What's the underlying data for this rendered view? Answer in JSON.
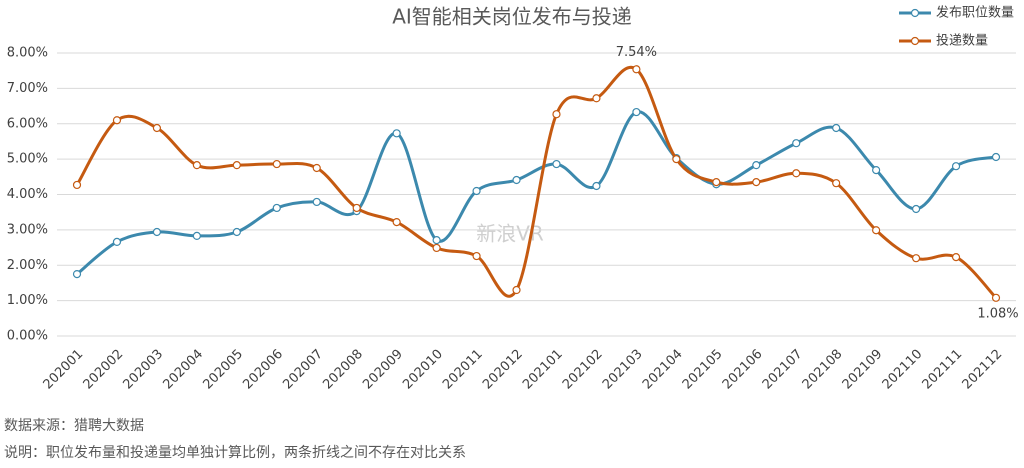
{
  "chart_data": {
    "type": "line",
    "title": "AI智能相关岗位发布与投递",
    "categories": [
      "202001",
      "202002",
      "202003",
      "202004",
      "202005",
      "202006",
      "202007",
      "202008",
      "202009",
      "202010",
      "202011",
      "202012",
      "202101",
      "202102",
      "202103",
      "202104",
      "202105",
      "202106",
      "202107",
      "202108",
      "202109",
      "202110",
      "202111",
      "202112"
    ],
    "series": [
      {
        "name": "发布职位数量",
        "color": "#3c89ad",
        "values": [
          1.75,
          2.66,
          2.94,
          2.83,
          2.94,
          3.62,
          3.79,
          3.53,
          5.73,
          2.71,
          4.1,
          4.41,
          4.86,
          4.24,
          6.33,
          5.03,
          4.29,
          4.83,
          5.45,
          5.88,
          4.69,
          3.59,
          4.8,
          5.06
        ]
      },
      {
        "name": "投递数量",
        "color": "#c55a11",
        "values": [
          4.27,
          6.1,
          5.88,
          4.83,
          4.83,
          4.86,
          4.75,
          3.62,
          3.22,
          2.49,
          2.26,
          1.3,
          6.27,
          6.72,
          7.54,
          5.0,
          4.35,
          4.35,
          4.6,
          4.32,
          2.99,
          2.2,
          2.23,
          1.08
        ],
        "value_labels": [
          null,
          null,
          null,
          null,
          null,
          null,
          null,
          null,
          null,
          null,
          null,
          null,
          null,
          null,
          "7.54%",
          null,
          null,
          null,
          null,
          null,
          null,
          null,
          null,
          "1.08%"
        ]
      }
    ],
    "ylim": [
      0,
      8
    ],
    "yticks": [
      {
        "value": 0,
        "label": "0.00%"
      },
      {
        "value": 1,
        "label": "1.00%"
      },
      {
        "value": 2,
        "label": "2.00%"
      },
      {
        "value": 3,
        "label": "3.00%"
      },
      {
        "value": 4,
        "label": "4.00%"
      },
      {
        "value": 5,
        "label": "5.00%"
      },
      {
        "value": 6,
        "label": "6.00%"
      },
      {
        "value": 7,
        "label": "7.00%"
      },
      {
        "value": 8,
        "label": "8.00%"
      }
    ],
    "grid": true,
    "legend": "top-right",
    "watermark": "新浪VR",
    "source": "数据来源：猎聘大数据",
    "note": "说明：职位发布量和投递量均单独计算比例，两条折线之间不存在对比关系"
  }
}
